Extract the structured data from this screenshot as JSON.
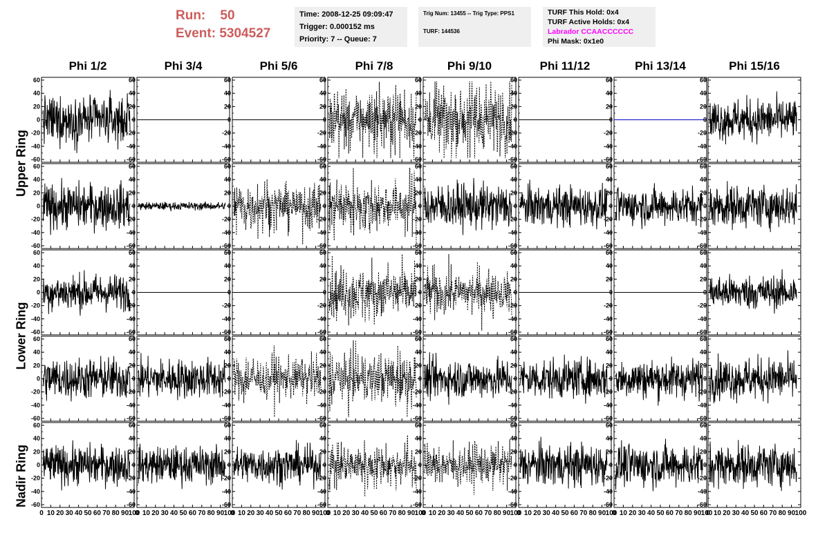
{
  "header": {
    "run_label": "Run:",
    "run_value": "50",
    "event_label": "Event:",
    "event_value": "5304527"
  },
  "info_time": {
    "time": "Time: 2008-12-25 09:09:47",
    "trigger": "Trigger: 0.000152 ms",
    "priority": "Priority: 7 -- Queue: 7"
  },
  "info_trig": {
    "trig": "Trig Num: 13455 -- Trig Type: PPS1",
    "turf": "TURF: 144536"
  },
  "info_turf": {
    "this_hold": "TURF This Hold: 0x4",
    "active_holds": "TURF Active Holds: 0x4",
    "labrador": "Labrador CCAACCCCCC",
    "phi_mask": "Phi Mask: 0x1e0",
    "labrador_color": "#ff00ff"
  },
  "columns": [
    "Phi 1/2",
    "Phi 3/4",
    "Phi 5/6",
    "Phi 7/8",
    "Phi 9/10",
    "Phi 11/12",
    "Phi 13/14",
    "Phi 15/16"
  ],
  "rings": [
    "Upper Ring",
    "Lower Ring",
    "Nadir Ring"
  ],
  "chart_data": {
    "type": "line",
    "ylim": [
      -60,
      60
    ],
    "xlim": [
      0,
      100
    ],
    "y_ticks": [
      -60,
      -40,
      -20,
      0,
      20,
      40,
      60
    ],
    "x_ticks": [
      0,
      10,
      20,
      30,
      40,
      50,
      60,
      70,
      80,
      90,
      100
    ],
    "grid": false,
    "rows": 5,
    "cols": 8,
    "panel_styles": [
      [
        "solid",
        "flat",
        "flat",
        "dashed",
        "dashed",
        "flat",
        "flat-blue",
        "solid"
      ],
      [
        "solid",
        "quiet",
        "dashed",
        "dashed",
        "solid",
        "solid",
        "solid",
        "solid"
      ],
      [
        "solid",
        "flat",
        "flat",
        "dashed",
        "dashed",
        "flat",
        "flat",
        "solid"
      ],
      [
        "solid",
        "solid",
        "dashed",
        "dashed",
        "solid",
        "solid",
        "solid",
        "solid"
      ],
      [
        "solid",
        "solid",
        "solid",
        "dashed",
        "dashed",
        "solid",
        "solid",
        "solid"
      ]
    ],
    "panel_amplitude": [
      [
        18,
        0,
        0,
        22,
        26,
        0,
        0,
        16
      ],
      [
        17,
        3,
        17,
        19,
        17,
        15,
        14,
        16
      ],
      [
        14,
        0,
        0,
        19,
        16,
        0,
        0,
        13
      ],
      [
        16,
        15,
        15,
        19,
        15,
        15,
        15,
        16
      ],
      [
        15,
        14,
        14,
        16,
        15,
        16,
        16,
        16
      ]
    ],
    "samples_per_trace": 260
  },
  "colors": {
    "run_text": "#cd5c5c",
    "info_bg": "#efefef",
    "flat_blue": "#0000cc"
  }
}
